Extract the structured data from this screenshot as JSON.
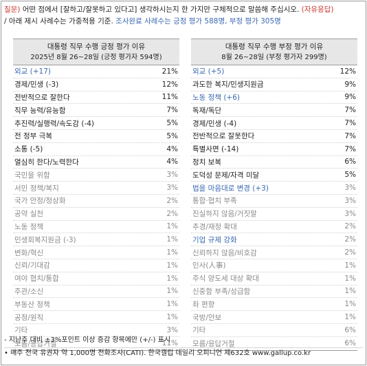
{
  "question": {
    "tag": "질문)",
    "text": " 어떤 점에서 [잘하고/잘못하고 있다고] 생각하시는지 한 가지만 구체적으로 말씀해 주십시오.",
    "answer_type": "(자유응답)",
    "note_prefix": "/ 아래 제시 사례수는 가중적용 기준.",
    "note_blue": "조사완료 사례수는 긍정 평가 588명, 부정 평가 305명"
  },
  "positive": {
    "title": "대통령 직무 수행 긍정 평가 이유",
    "subtitle": "2025년 8월 26~28일 (긍정 평가자 594명)",
    "rows": [
      {
        "label": "외교 (+17)",
        "pct": "21%",
        "style": "b",
        "blue": true
      },
      {
        "label": "경제/민생 (-3)",
        "pct": "12%",
        "style": "b",
        "blue": false
      },
      {
        "label": "전반적으로 잘한다",
        "pct": "11%",
        "style": "b",
        "blue": false
      },
      {
        "label": "직무 능력/유능함",
        "pct": "7%",
        "style": "b",
        "blue": false
      },
      {
        "label": "추진력/실행력/속도감 (-4)",
        "pct": "5%",
        "style": "b",
        "blue": false
      },
      {
        "label": "전 정부 극복",
        "pct": "5%",
        "style": "b",
        "blue": false
      },
      {
        "label": "소통 (-5)",
        "pct": "4%",
        "style": "b",
        "blue": false
      },
      {
        "label": "열심히 한다/노력한다",
        "pct": "4%",
        "style": "b",
        "blue": false
      },
      {
        "label": "국민을 위함",
        "pct": "3%",
        "style": "g",
        "blue": false
      },
      {
        "label": "서민 정책/복지",
        "pct": "3%",
        "style": "g",
        "blue": false
      },
      {
        "label": "국가 안정/정상화",
        "pct": "2%",
        "style": "g",
        "blue": false
      },
      {
        "label": "공약 실천",
        "pct": "2%",
        "style": "g",
        "blue": false
      },
      {
        "label": "노동 정책",
        "pct": "1%",
        "style": "g",
        "blue": false
      },
      {
        "label": "민생회복지원금 (-3)",
        "pct": "1%",
        "style": "g",
        "blue": false
      },
      {
        "label": "변화/혁신",
        "pct": "1%",
        "style": "g",
        "blue": false
      },
      {
        "label": "신뢰/기대감",
        "pct": "1%",
        "style": "g",
        "blue": false
      },
      {
        "label": "여야 협치/통합",
        "pct": "1%",
        "style": "g",
        "blue": false
      },
      {
        "label": "주관/소신",
        "pct": "1%",
        "style": "g",
        "blue": false
      },
      {
        "label": "부동산 정책",
        "pct": "1%",
        "style": "g",
        "blue": false
      },
      {
        "label": "공정/원칙",
        "pct": "1%",
        "style": "g",
        "blue": false
      },
      {
        "label": "기타",
        "pct": "3%",
        "style": "g",
        "blue": false
      },
      {
        "label": "모름/응답거절",
        "pct": "11%",
        "style": "g",
        "blue": false
      }
    ]
  },
  "negative": {
    "title": "대통령 직무 수행 부정 평가 이유",
    "subtitle": "8월 26~28일 (부정 평가자 299명)",
    "rows": [
      {
        "label": "외교 (+5)",
        "pct": "12%",
        "style": "b",
        "blue": true
      },
      {
        "label": "과도한 복지/민생지원금",
        "pct": "9%",
        "style": "b",
        "blue": false
      },
      {
        "label": "노동 정책 (+6)",
        "pct": "9%",
        "style": "b",
        "blue": true
      },
      {
        "label": "독재/독단",
        "pct": "7%",
        "style": "b",
        "blue": false
      },
      {
        "label": "경제/민생 (-4)",
        "pct": "7%",
        "style": "b",
        "blue": false
      },
      {
        "label": "전반적으로 잘못한다",
        "pct": "7%",
        "style": "b",
        "blue": false
      },
      {
        "label": "특별사면 (-14)",
        "pct": "7%",
        "style": "b",
        "blue": false
      },
      {
        "label": "정치 보복",
        "pct": "6%",
        "style": "b",
        "blue": false
      },
      {
        "label": "도덕성 문제/자격 미달",
        "pct": "5%",
        "style": "b",
        "blue": false
      },
      {
        "label": "법을 마음대로 변경 (+3)",
        "pct": "3%",
        "style": "g",
        "blue": true
      },
      {
        "label": "통합·협치 부족",
        "pct": "3%",
        "style": "g",
        "blue": false
      },
      {
        "label": "진실하지 않음/거짓말",
        "pct": "3%",
        "style": "g",
        "blue": false
      },
      {
        "label": "추경/재정 확대",
        "pct": "2%",
        "style": "g",
        "blue": false
      },
      {
        "label": "기업 규제 강화",
        "pct": "2%",
        "style": "g",
        "blue": true
      },
      {
        "label": "신뢰하지 않음/비호감",
        "pct": "2%",
        "style": "g",
        "blue": false
      },
      {
        "label": "인사(人事)",
        "pct": "1%",
        "style": "g",
        "blue": false
      },
      {
        "label": "주식 양도세 대상 확대",
        "pct": "1%",
        "style": "g",
        "blue": false
      },
      {
        "label": "신중함 부족/성급함",
        "pct": "1%",
        "style": "g",
        "blue": false
      },
      {
        "label": "좌 편향",
        "pct": "1%",
        "style": "g",
        "blue": false
      },
      {
        "label": "국방/안보",
        "pct": "1%",
        "style": "g",
        "blue": false
      },
      {
        "label": "기타",
        "pct": "6%",
        "style": "g",
        "blue": false
      },
      {
        "label": "모름/응답거절",
        "pct": "6%",
        "style": "g",
        "blue": false
      }
    ]
  },
  "footer": {
    "line1": "- 지난주 대비 ±3%포인트 이상 증감 항목에만 (+/-) 표시",
    "line2": "• 매주 전국 유권자 약 1,000명 전화조사(CATI). 한국갤럽 데일리 오피니언 제632호 www.gallup.co.kr"
  },
  "colors": {
    "accent_red": "#c8352d",
    "accent_blue": "#3a68b3",
    "header_bg": "#e7e7e7",
    "muted_text": "#8a8a8a"
  }
}
